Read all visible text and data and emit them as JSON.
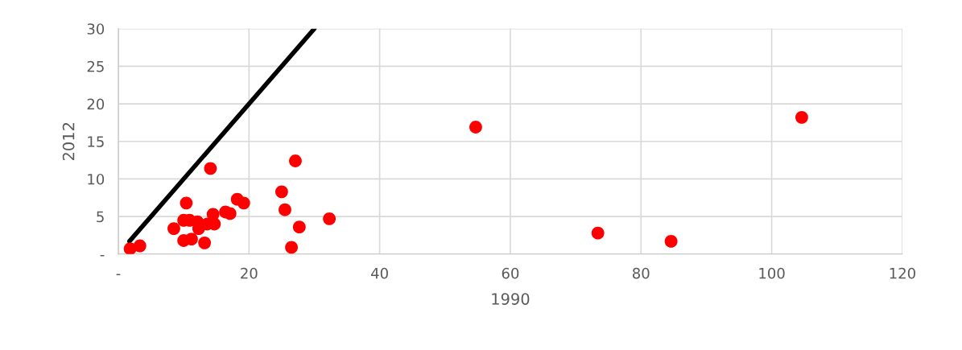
{
  "chart_data": {
    "type": "scatter",
    "xlabel": "1990",
    "ylabel": "2012",
    "xlim": [
      0,
      120
    ],
    "ylim": [
      0,
      30
    ],
    "xticks": [
      {
        "value": 0,
        "label": "-"
      },
      20,
      40,
      60,
      80,
      100,
      120
    ],
    "yticks": [
      {
        "value": 0,
        "label": "-"
      },
      5,
      10,
      15,
      20,
      25,
      30
    ],
    "grid": true,
    "legend": false,
    "series": [
      {
        "color": "#ff0000",
        "marker": "circle",
        "x": [
          1.8,
          3.3,
          8.5,
          10.4,
          10.0,
          10.9,
          12.1,
          12.3,
          10.0,
          11.2,
          13.2,
          13.6,
          14.7,
          14.5,
          14.1,
          16.4,
          17.1,
          18.2,
          19.2,
          27.1,
          25.0,
          25.5,
          27.7,
          26.5,
          32.3,
          54.7,
          73.4,
          84.6,
          104.6
        ],
        "values": [
          0.7,
          1.1,
          3.4,
          6.8,
          4.5,
          4.5,
          4.3,
          3.4,
          1.8,
          2.0,
          1.5,
          4.0,
          4.0,
          5.3,
          11.4,
          5.6,
          5.4,
          7.3,
          6.8,
          12.4,
          8.3,
          5.9,
          3.6,
          0.9,
          4.7,
          16.9,
          2.8,
          1.7,
          18.2
        ]
      },
      {
        "type": "line",
        "color": "#000000",
        "marker": "none",
        "line_style": "solid",
        "x": [
          1.7,
          30
        ],
        "values": [
          1.7,
          30
        ]
      }
    ]
  }
}
